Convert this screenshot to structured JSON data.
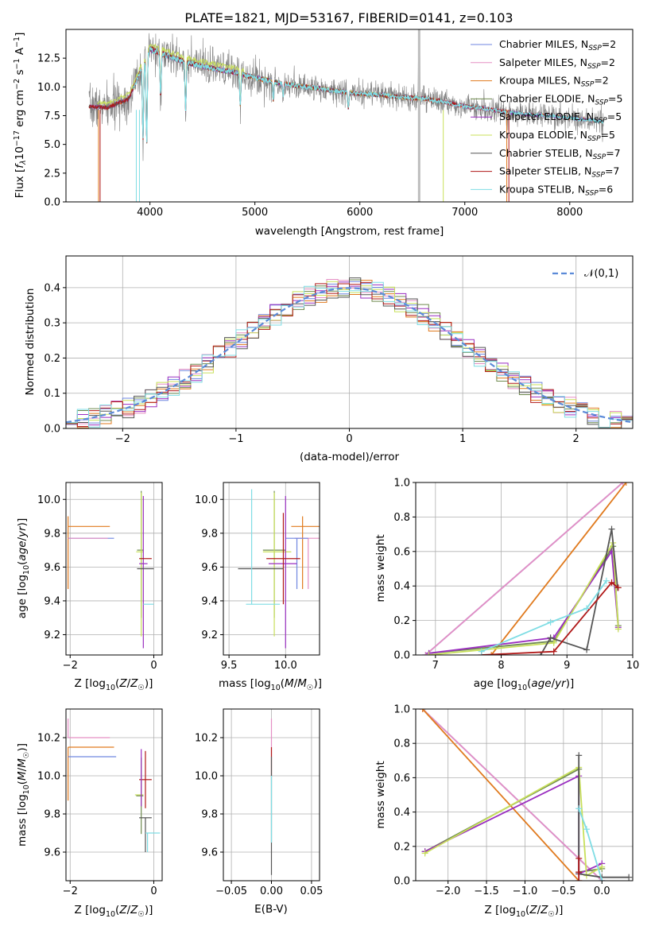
{
  "figure_title": "PLATE=1821, MJD=53167, FIBERID=0141, z=0.103",
  "colors": {
    "Chabrier MILES": "#6f86e0",
    "Salpeter MILES": "#e58fc4",
    "Kroupa MILES": "#e07a1e",
    "Chabrier ELODIE": "#6f8a4f",
    "Salpeter ELODIE": "#9a2ec0",
    "Kroupa ELODIE": "#c8e05a",
    "Chabrier STELIB": "#555555",
    "Salpeter STELIB": "#b01818",
    "Kroupa STELIB": "#7fdde4",
    "data": "#808080",
    "normal": "#5b8ad8"
  },
  "chart_data": [
    {
      "id": "spectrum",
      "type": "line",
      "title": "PLATE=1821, MJD=53167, FIBERID=0141, z=0.103",
      "xlabel": "wavelength [Angstrom, rest frame]",
      "ylabel_parts": [
        "Flux [",
        "f",
        "λ",
        "10",
        "−17",
        " erg cm",
        "−2",
        " s",
        "−1",
        " A",
        "−1",
        "]"
      ],
      "xlim": [
        3200,
        8600
      ],
      "ylim": [
        0,
        15
      ],
      "xticks": [
        4000,
        5000,
        6000,
        7000,
        8000
      ],
      "yticks": [
        0.0,
        2.5,
        5.0,
        7.5,
        10.0,
        12.5
      ],
      "ytick_labels": [
        "0.0",
        "2.5",
        "5.0",
        "7.5",
        "10.0",
        "12.5"
      ],
      "legend_position": "right",
      "legend": [
        {
          "name": "Chabrier MILES",
          "nssp": "2"
        },
        {
          "name": "Salpeter MILES",
          "nssp": "2"
        },
        {
          "name": "Kroupa MILES",
          "nssp": "2"
        },
        {
          "name": "Chabrier ELODIE",
          "nssp": "5"
        },
        {
          "name": "Salpeter ELODIE",
          "nssp": "5"
        },
        {
          "name": "Kroupa ELODIE",
          "nssp": "5"
        },
        {
          "name": "Chabrier STELIB",
          "nssp": "7"
        },
        {
          "name": "Salpeter STELIB",
          "nssp": "7"
        },
        {
          "name": "Kroupa STELIB",
          "nssp": "6"
        }
      ],
      "continuum": {
        "x": [
          3420,
          3600,
          3800,
          4000,
          4200,
          4400,
          4600,
          4800,
          5000,
          5200,
          5400,
          5600,
          5800,
          6000,
          6200,
          6400,
          6600,
          6800,
          7000,
          7200,
          7400,
          7600,
          7800,
          8000,
          8200,
          8300
        ],
        "y": [
          8.3,
          8.2,
          9.0,
          13.3,
          12.6,
          12.0,
          11.6,
          11.3,
          10.8,
          10.4,
          10.1,
          9.9,
          9.6,
          9.4,
          9.3,
          9.1,
          9.0,
          8.7,
          8.3,
          8.1,
          7.8,
          7.6,
          7.5,
          7.3,
          7.1,
          7.0
        ]
      }
    },
    {
      "id": "residuals",
      "type": "histogram",
      "xlabel": "(data-model)/error",
      "ylabel": "Normed distribution",
      "xlim": [
        -2.5,
        2.5
      ],
      "ylim": [
        0,
        0.49
      ],
      "xticks": [
        -2,
        -1,
        0,
        1,
        2
      ],
      "xtick_labels": [
        "−2",
        "−1",
        "0",
        "1",
        "2"
      ],
      "yticks": [
        0.0,
        0.1,
        0.2,
        0.3,
        0.4
      ],
      "ytick_labels": [
        "0.0",
        "0.1",
        "0.2",
        "0.3",
        "0.4"
      ],
      "bin_width": 0.1,
      "legend": "𝒩(0,1)",
      "legend_position": "top-right",
      "grid": true
    },
    {
      "id": "age-vs-Z",
      "type": "errorbar",
      "xlabel": "Z [log10(Z/Z☉)]",
      "ylabel": "age  [log10(age/yr)]",
      "xlim": [
        -2.1,
        0.2
      ],
      "ylim": [
        9.08,
        10.1
      ],
      "xticks": [
        -2,
        0
      ],
      "xtick_labels": [
        "−2",
        "0"
      ],
      "yticks": [
        9.2,
        9.4,
        9.6,
        9.8,
        10.0
      ],
      "ytick_labels": [
        "9.2",
        "9.4",
        "9.6",
        "9.8",
        "10.0"
      ],
      "points": [
        {
          "s": "Kroupa MILES",
          "x": -2.05,
          "y": 9.84,
          "xerr": [
            0,
            1.0
          ],
          "yerr": [
            0.37,
            0.06
          ]
        },
        {
          "s": "Chabrier MILES",
          "x": -2.05,
          "y": 9.77,
          "xerr": [
            0,
            1.1
          ],
          "yerr": [
            0,
            0
          ]
        },
        {
          "s": "Salpeter MILES",
          "x": -2.05,
          "y": 9.77,
          "xerr": [
            0,
            0.95
          ],
          "yerr": [
            0,
            0
          ]
        },
        {
          "s": "Chabrier ELODIE",
          "x": -0.3,
          "y": 9.7,
          "xerr": [
            0.1,
            0.05
          ],
          "yerr": [
            0.4,
            0.35
          ]
        },
        {
          "s": "Kroupa ELODIE",
          "x": -0.3,
          "y": 9.69,
          "xerr": [
            0.12,
            0.05
          ],
          "yerr": [
            0.5,
            0.35
          ]
        },
        {
          "s": "Salpeter ELODIE",
          "x": -0.25,
          "y": 9.62,
          "xerr": [
            0.1,
            0.1
          ],
          "yerr": [
            0.5,
            0.4
          ]
        },
        {
          "s": "Salpeter STELIB",
          "x": -0.2,
          "y": 9.65,
          "xerr": [
            0.15,
            0.15
          ],
          "yerr": [
            0,
            0
          ]
        },
        {
          "s": "Chabrier STELIB",
          "x": -0.2,
          "y": 9.59,
          "xerr": [
            0.2,
            0.2
          ],
          "yerr": [
            0,
            0
          ]
        },
        {
          "s": "Kroupa STELIB",
          "x": -0.15,
          "y": 9.38,
          "xerr": [
            0.1,
            0.15
          ],
          "yerr": [
            0,
            0
          ]
        }
      ]
    },
    {
      "id": "age-vs-mass",
      "type": "errorbar",
      "xlabel": "mass [log10(M/M☉)]",
      "ylabel": "",
      "xlim": [
        9.45,
        10.3
      ],
      "ylim": [
        9.08,
        10.1
      ],
      "xticks": [
        9.5,
        10.0
      ],
      "xtick_labels": [
        "9.5",
        "10.0"
      ],
      "yticks": [
        9.2,
        9.4,
        9.6,
        9.8,
        10.0
      ],
      "ytick_labels": [
        "9.2",
        "9.4",
        "9.6",
        "9.8",
        "10.0"
      ],
      "points": [
        {
          "s": "Kroupa MILES",
          "x": 10.15,
          "y": 9.84,
          "xerr": [
            0.1,
            0.15
          ],
          "yerr": [
            0.37,
            0.06
          ]
        },
        {
          "s": "Salpeter MILES",
          "x": 10.2,
          "y": 9.77,
          "xerr": [
            0.12,
            0.15
          ],
          "yerr": [
            0.3,
            0
          ]
        },
        {
          "s": "Chabrier MILES",
          "x": 10.1,
          "y": 9.77,
          "xerr": [
            0.1,
            0.1
          ],
          "yerr": [
            0.3,
            0
          ]
        },
        {
          "s": "Chabrier ELODIE",
          "x": 9.9,
          "y": 9.7,
          "xerr": [
            0.1,
            0.1
          ],
          "yerr": [
            0.4,
            0.35
          ]
        },
        {
          "s": "Kroupa ELODIE",
          "x": 9.9,
          "y": 9.69,
          "xerr": [
            0.1,
            0.15
          ],
          "yerr": [
            0.5,
            0.35
          ]
        },
        {
          "s": "Salpeter ELODIE",
          "x": 10.0,
          "y": 9.62,
          "xerr": [
            0.15,
            0.1
          ],
          "yerr": [
            0.5,
            0.4
          ]
        },
        {
          "s": "Salpeter STELIB",
          "x": 9.98,
          "y": 9.65,
          "xerr": [
            0.15,
            0.15
          ],
          "yerr": [
            0.27,
            0.27
          ]
        },
        {
          "s": "Chabrier STELIB",
          "x": 9.78,
          "y": 9.59,
          "xerr": [
            0.2,
            0.2
          ],
          "yerr": [
            0,
            0
          ]
        },
        {
          "s": "Kroupa STELIB",
          "x": 9.7,
          "y": 9.38,
          "xerr": [
            0.05,
            0.25
          ],
          "yerr": [
            0,
            0.68
          ]
        }
      ]
    },
    {
      "id": "weight-vs-age",
      "type": "line",
      "xlabel": "age  [log10(age/yr)]",
      "ylabel": "mass weight",
      "xlim": [
        6.7,
        10.0
      ],
      "ylim": [
        0.0,
        1.0
      ],
      "xticks": [
        7,
        8,
        9,
        10
      ],
      "xtick_labels": [
        "7",
        "8",
        "9",
        "10"
      ],
      "yticks": [
        0.0,
        0.2,
        0.4,
        0.6,
        0.8,
        1.0
      ],
      "ytick_labels": [
        "0.0",
        "0.2",
        "0.4",
        "0.6",
        "0.8",
        "1.0"
      ],
      "grid": true,
      "series": [
        {
          "s": "Chabrier MILES",
          "x": [
            6.85,
            9.85
          ],
          "y": [
            0.0,
            1.0
          ]
        },
        {
          "s": "Salpeter MILES",
          "x": [
            6.85,
            9.85
          ],
          "y": [
            0.0,
            1.0
          ]
        },
        {
          "s": "Kroupa MILES",
          "x": [
            7.85,
            9.9
          ],
          "y": [
            0.0,
            1.0
          ]
        },
        {
          "s": "Chabrier ELODIE",
          "x": [
            6.9,
            8.8,
            9.7,
            9.78
          ],
          "y": [
            0.01,
            0.08,
            0.63,
            0.17
          ]
        },
        {
          "s": "Salpeter ELODIE",
          "x": [
            6.9,
            8.8,
            9.68,
            9.78
          ],
          "y": [
            0.01,
            0.1,
            0.6,
            0.16
          ]
        },
        {
          "s": "Kroupa ELODIE",
          "x": [
            6.9,
            8.8,
            9.7,
            9.78
          ],
          "y": [
            0.0,
            0.07,
            0.65,
            0.15
          ]
        },
        {
          "s": "Chabrier STELIB",
          "x": [
            8.6,
            8.75,
            9.3,
            9.68,
            9.77
          ],
          "y": [
            0.0,
            0.1,
            0.03,
            0.73,
            0.39
          ]
        },
        {
          "s": "Salpeter STELIB",
          "x": [
            7.7,
            8.8,
            9.68,
            9.78
          ],
          "y": [
            0.0,
            0.02,
            0.42,
            0.39
          ]
        },
        {
          "s": "Kroupa STELIB",
          "x": [
            7.7,
            8.75,
            9.3,
            9.6
          ],
          "y": [
            0.02,
            0.19,
            0.27,
            0.43
          ]
        }
      ]
    },
    {
      "id": "mass-vs-Z",
      "type": "errorbar",
      "xlabel": "Z [log10(Z/Z☉)]",
      "ylabel": "mass [log10(M/M☉)]",
      "xlim": [
        -2.1,
        0.2
      ],
      "ylim": [
        9.45,
        10.35
      ],
      "xticks": [
        -2,
        0
      ],
      "xtick_labels": [
        "−2",
        "0"
      ],
      "yticks": [
        9.6,
        9.8,
        10.0,
        10.2
      ],
      "ytick_labels": [
        "9.6",
        "9.8",
        "10.0",
        "10.2"
      ],
      "points": [
        {
          "s": "Salpeter MILES",
          "x": -2.05,
          "y": 10.2,
          "xerr": [
            0,
            1.0
          ],
          "yerr": [
            0,
            0.1
          ]
        },
        {
          "s": "Kroupa MILES",
          "x": -2.05,
          "y": 10.15,
          "xerr": [
            0,
            1.1
          ],
          "yerr": [
            0.28,
            0
          ]
        },
        {
          "s": "Chabrier MILES",
          "x": -2.05,
          "y": 10.1,
          "xerr": [
            0,
            1.15
          ],
          "yerr": [
            0,
            0
          ]
        },
        {
          "s": "Salpeter STELIB",
          "x": -0.2,
          "y": 9.98,
          "xerr": [
            0.15,
            0.15
          ],
          "yerr": [
            0.15,
            0.15
          ]
        },
        {
          "s": "Kroupa ELODIE",
          "x": -0.35,
          "y": 9.9,
          "xerr": [
            0.1,
            0.1
          ],
          "yerr": [
            0,
            0
          ]
        },
        {
          "s": "Chabrier ELODIE",
          "x": -0.3,
          "y": 9.895,
          "xerr": [
            0.12,
            0.05
          ],
          "yerr": [
            0.2,
            0.2
          ]
        },
        {
          "s": "Salpeter ELODIE",
          "x": -0.3,
          "y": 9.99,
          "xerr": [
            0,
            0
          ],
          "yerr": [
            0.15,
            0.15
          ]
        },
        {
          "s": "Chabrier STELIB",
          "x": -0.2,
          "y": 9.78,
          "xerr": [
            0.15,
            0.15
          ],
          "yerr": [
            0.18,
            0
          ]
        },
        {
          "s": "Kroupa STELIB",
          "x": -0.15,
          "y": 9.7,
          "xerr": [
            0.05,
            0.3
          ],
          "yerr": [
            0.1,
            0
          ]
        }
      ]
    },
    {
      "id": "mass-vs-EBV",
      "type": "errorbar",
      "xlabel": "E(B-V)",
      "ylabel": "",
      "xlim": [
        -0.06,
        0.06
      ],
      "ylim": [
        9.45,
        10.35
      ],
      "xticks": [
        -0.05,
        0.0,
        0.05
      ],
      "xtick_labels": [
        "−0.05",
        "0.00",
        "0.05"
      ],
      "yticks": [
        9.6,
        9.8,
        10.0,
        10.2
      ],
      "ytick_labels": [
        "9.6",
        "9.8",
        "10.0",
        "10.2"
      ],
      "points": [
        {
          "s": "Salpeter MILES",
          "x": 0.0,
          "y": 10.2,
          "xerr": [
            0,
            0
          ],
          "yerr": [
            0.1,
            0.1
          ]
        },
        {
          "s": "Salpeter STELIB",
          "x": 0.0,
          "y": 10.1,
          "xerr": [
            0,
            0
          ],
          "yerr": [
            0.1,
            0.05
          ]
        },
        {
          "s": "Chabrier STELIB",
          "x": 0.0,
          "y": 9.7,
          "xerr": [
            0,
            0
          ],
          "yerr": [
            0.22,
            0.4
          ]
        },
        {
          "s": "Kroupa STELIB",
          "x": 0.0,
          "y": 9.7,
          "xerr": [
            0,
            0
          ],
          "yerr": [
            0.05,
            0.3
          ]
        }
      ]
    },
    {
      "id": "weight-vs-Z",
      "type": "line",
      "xlabel": "Z [log10(Z/Z☉)]",
      "ylabel": "mass weight",
      "xlim": [
        -2.42,
        0.4
      ],
      "ylim": [
        0.0,
        1.0
      ],
      "xticks": [
        -2.0,
        -1.5,
        -1.0,
        -0.5,
        0.0
      ],
      "xtick_labels": [
        "−2.0",
        "−1.5",
        "−1.0",
        "−0.5",
        "0.0"
      ],
      "yticks": [
        0.0,
        0.2,
        0.4,
        0.6,
        0.8,
        1.0
      ],
      "ytick_labels": [
        "0.0",
        "0.2",
        "0.4",
        "0.6",
        "0.8",
        "1.0"
      ],
      "grid": true,
      "series": [
        {
          "s": "Chabrier MILES",
          "x": [
            -2.33,
            0.0
          ],
          "y": [
            1.0,
            0.0
          ]
        },
        {
          "s": "Salpeter MILES",
          "x": [
            -2.33,
            0.0
          ],
          "y": [
            1.0,
            0.0
          ]
        },
        {
          "s": "Kroupa MILES",
          "x": [
            -2.33,
            -0.3
          ],
          "y": [
            1.0,
            0.0
          ]
        },
        {
          "s": "Chabrier ELODIE",
          "x": [
            -2.3,
            -0.3,
            -0.3,
            0.0
          ],
          "y": [
            0.17,
            0.65,
            0.05,
            0.07
          ]
        },
        {
          "s": "Salpeter ELODIE",
          "x": [
            -2.3,
            -0.3,
            -0.3,
            0.0
          ],
          "y": [
            0.17,
            0.61,
            0.04,
            0.1
          ]
        },
        {
          "s": "Kroupa ELODIE",
          "x": [
            -2.3,
            -0.3,
            -0.2,
            0.0
          ],
          "y": [
            0.16,
            0.66,
            0.03,
            0.08
          ]
        },
        {
          "s": "Chabrier STELIB",
          "x": [
            -0.3,
            -0.3,
            0.0,
            0.35
          ],
          "y": [
            0.73,
            0.04,
            0.02,
            0.02
          ]
        },
        {
          "s": "Salpeter STELIB",
          "x": [
            -0.3,
            -0.3,
            -0.3
          ],
          "y": [
            0.13,
            0.05,
            0.0
          ]
        },
        {
          "s": "Kroupa STELIB",
          "x": [
            -0.3,
            -0.2,
            0.0
          ],
          "y": [
            0.42,
            0.3,
            0.0
          ]
        }
      ]
    }
  ]
}
